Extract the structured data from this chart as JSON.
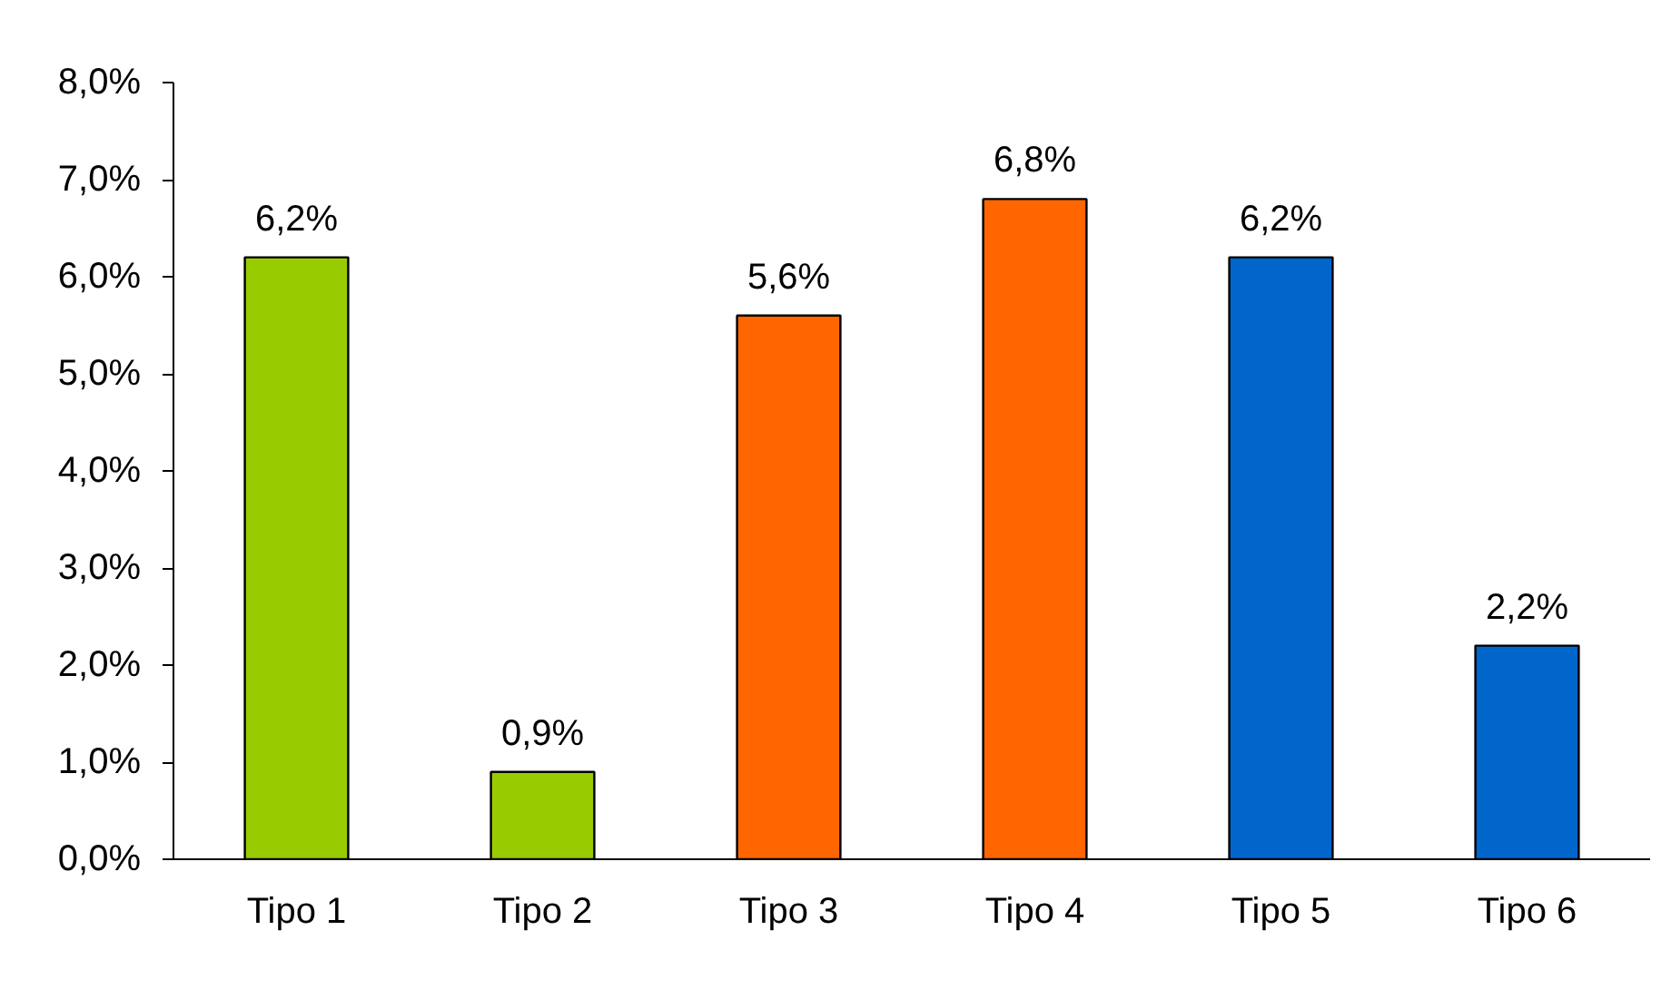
{
  "chart_data": {
    "type": "bar",
    "categories": [
      "Tipo 1",
      "Tipo 2",
      "Tipo 3",
      "Tipo 4",
      "Tipo 5",
      "Tipo 6"
    ],
    "values": [
      6.2,
      0.9,
      5.6,
      6.8,
      6.2,
      2.2
    ],
    "colors": [
      "#99cc00",
      "#99cc00",
      "#ff6600",
      "#ff6600",
      "#0066cc",
      "#0066cc"
    ],
    "value_labels": [
      "6,2%",
      "0,9%",
      "5,6%",
      "6,8%",
      "6,2%",
      "2,2%"
    ],
    "ylim": [
      0,
      8
    ],
    "yticks": [
      {
        "value": 0,
        "label": "0,0%"
      },
      {
        "value": 1,
        "label": "1,0%"
      },
      {
        "value": 2,
        "label": "2,0%"
      },
      {
        "value": 3,
        "label": "3,0%"
      },
      {
        "value": 4,
        "label": "4,0%"
      },
      {
        "value": 5,
        "label": "5,0%"
      },
      {
        "value": 6,
        "label": "6,0%"
      },
      {
        "value": 7,
        "label": "7,0%"
      },
      {
        "value": 8,
        "label": "8,0%"
      }
    ],
    "grid": false
  }
}
